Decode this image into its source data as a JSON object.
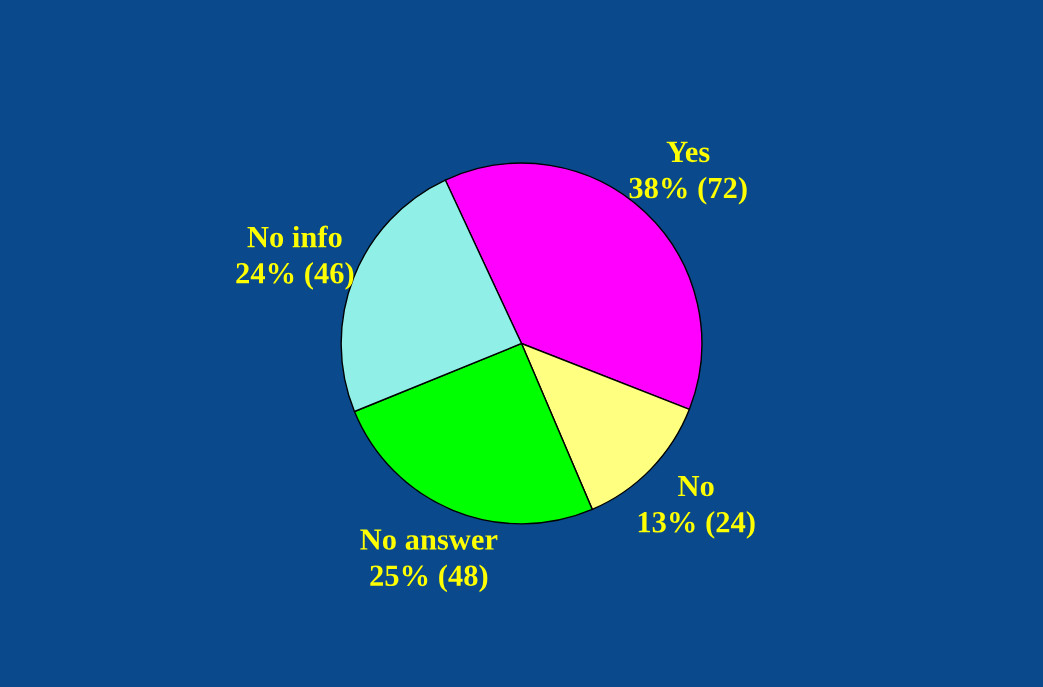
{
  "chart_data": {
    "type": "pie",
    "categories": [
      "Yes",
      "No",
      "No answer",
      "No info"
    ],
    "values": [
      72,
      24,
      48,
      46
    ],
    "value_labels": [
      "38% (72)",
      "13% (24)",
      "25% (48)",
      "24% (46)"
    ],
    "colors": [
      "#ff00ff",
      "#ffff80",
      "#00ff00",
      "#90f0e8"
    ]
  }
}
